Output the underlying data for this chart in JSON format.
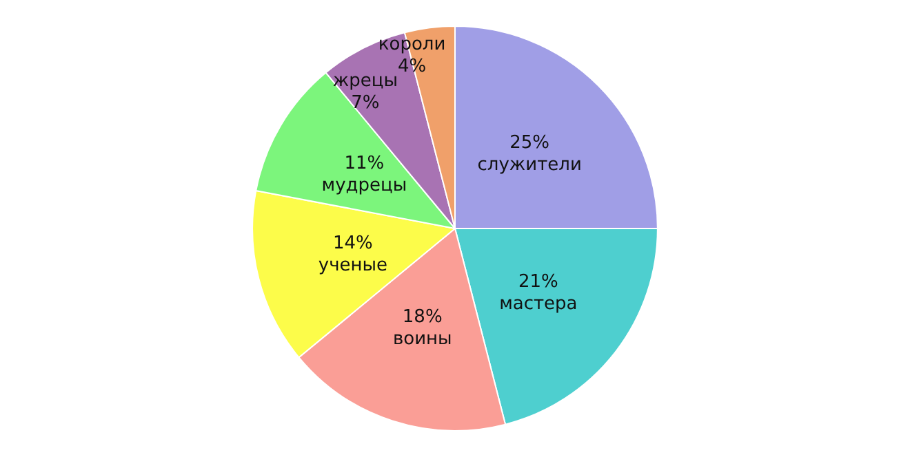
{
  "chart_data": {
    "type": "pie",
    "categories": [
      "служители",
      "мастера",
      "воины",
      "ученые",
      "мудрецы",
      "жрецы",
      "короли"
    ],
    "values": [
      25,
      21,
      18,
      14,
      11,
      7,
      4
    ],
    "colors": [
      "#a09ee6",
      "#4ecfcf",
      "#fa9e96",
      "#fcfc4a",
      "#7cf57c",
      "#a873b3",
      "#f0a06a"
    ],
    "value_labels": [
      "25%",
      "21%",
      "18%",
      "14%",
      "11%",
      "7%",
      "4%"
    ],
    "legend": false
  }
}
